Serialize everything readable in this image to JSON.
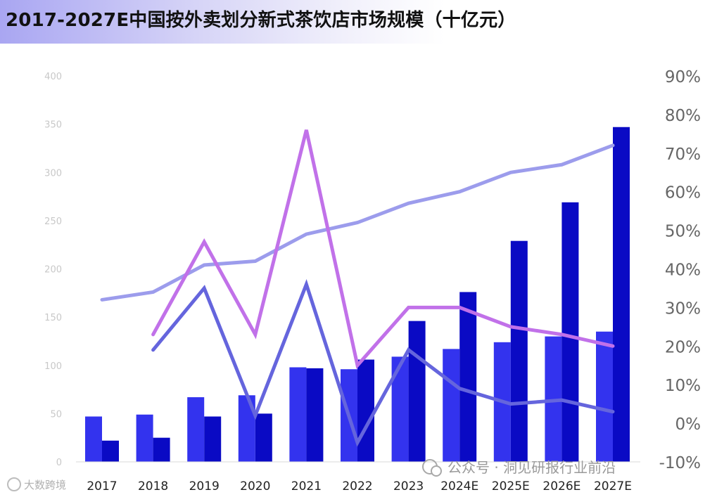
{
  "chart_data": {
    "type": "bar",
    "title": "2017-2027E中国按外卖划分新式茶饮店市场规模（十亿元）",
    "categories": [
      "2017",
      "2018",
      "2019",
      "2020",
      "2021",
      "2022",
      "2023",
      "2024E",
      "2025E",
      "2026E",
      "2027E"
    ],
    "series": [
      {
        "type": "bar",
        "axis": "left",
        "color": "#3333ee",
        "values": [
          47,
          49,
          67,
          69,
          98,
          96,
          109,
          117,
          124,
          130,
          135
        ]
      },
      {
        "type": "bar",
        "axis": "left",
        "color": "#0a0ac4",
        "values": [
          22,
          25,
          47,
          50,
          97,
          106,
          146,
          176,
          229,
          269,
          347
        ]
      },
      {
        "type": "line",
        "axis": "right",
        "color": "#9c9cec",
        "values": [
          32,
          34,
          41,
          42,
          49,
          52,
          57,
          60,
          65,
          67,
          72
        ]
      },
      {
        "type": "line",
        "axis": "right",
        "color": "#c171e9",
        "values": [
          null,
          23,
          47,
          23,
          76,
          15,
          30,
          30,
          25,
          23,
          20
        ]
      },
      {
        "type": "line",
        "axis": "right",
        "color": "#6565dd",
        "values": [
          null,
          19,
          35,
          2,
          36,
          -5,
          19,
          9,
          5,
          6,
          3
        ]
      }
    ],
    "ylim_left": [
      0,
      400
    ],
    "yticks_left": [
      "0",
      "50",
      "100",
      "150",
      "200",
      "250",
      "300",
      "350",
      "400"
    ],
    "ylim_right": [
      -10,
      90
    ],
    "yticks_right": [
      "-10%",
      "0%",
      "10%",
      "20%",
      "30%",
      "40%",
      "50%",
      "60%",
      "70%",
      "80%",
      "90%"
    ],
    "grid": false,
    "legend": "none"
  },
  "watermark": {
    "text": "公众号 · 洞见研报行业前沿",
    "left_text": "大数跨境"
  }
}
